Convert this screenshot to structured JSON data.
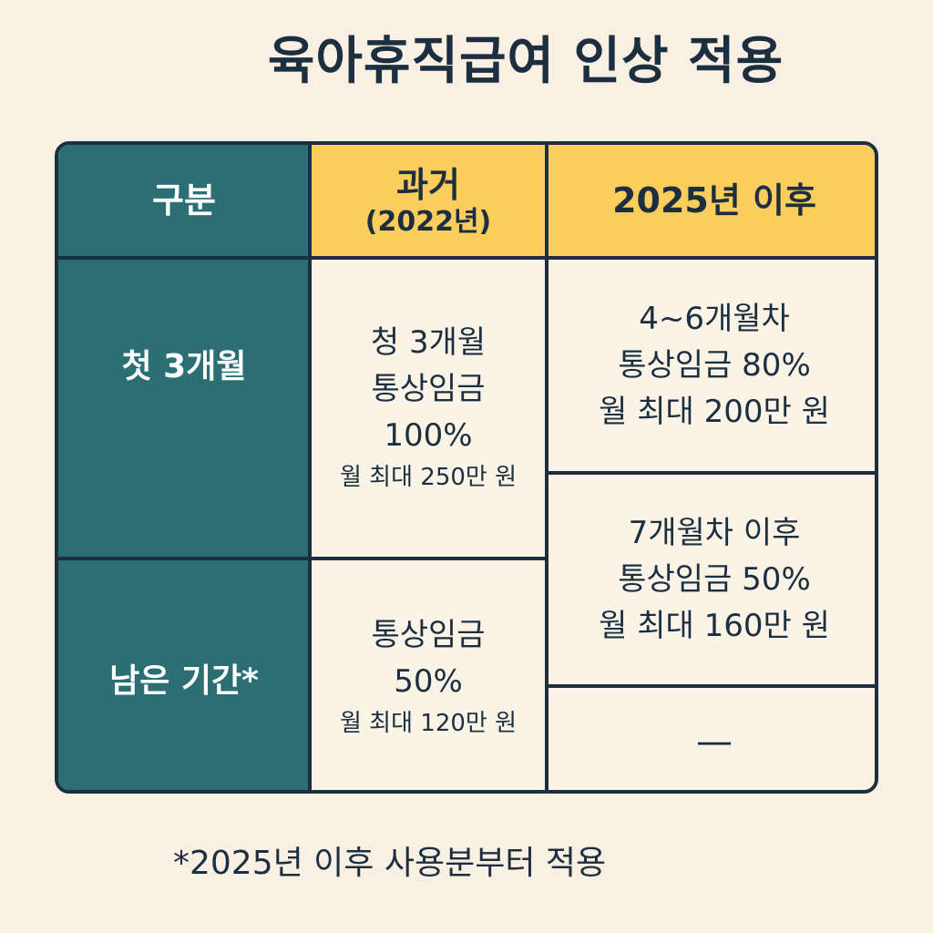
{
  "title": "육아휴직급여 인상 적용",
  "header": {
    "category": "구분",
    "past_line1": "과거",
    "past_line2": "(2022년)",
    "after": "2025년 이후"
  },
  "rows": {
    "first3": {
      "label": "첫 3개월",
      "past": {
        "line1": "청 3개월",
        "line2": "통상임금",
        "line3": "100%",
        "line4": "월 최대 250만 원"
      },
      "after_a": {
        "line1": "4~6개월차",
        "line2": "통상임금 80%",
        "line3": "월 최대 200만 원"
      }
    },
    "remaining": {
      "label": "남은 기간*",
      "past": {
        "line1": "통상임금",
        "line2": "50%",
        "line3": "월 최대 120만 원"
      },
      "after_b": {
        "line1": "7개월차 이후",
        "line2": "통상임금 50%",
        "line3": "월 최대 160만 원"
      },
      "after_c": "—"
    }
  },
  "footnote": "*2025년 이후 사용분부터 적용"
}
